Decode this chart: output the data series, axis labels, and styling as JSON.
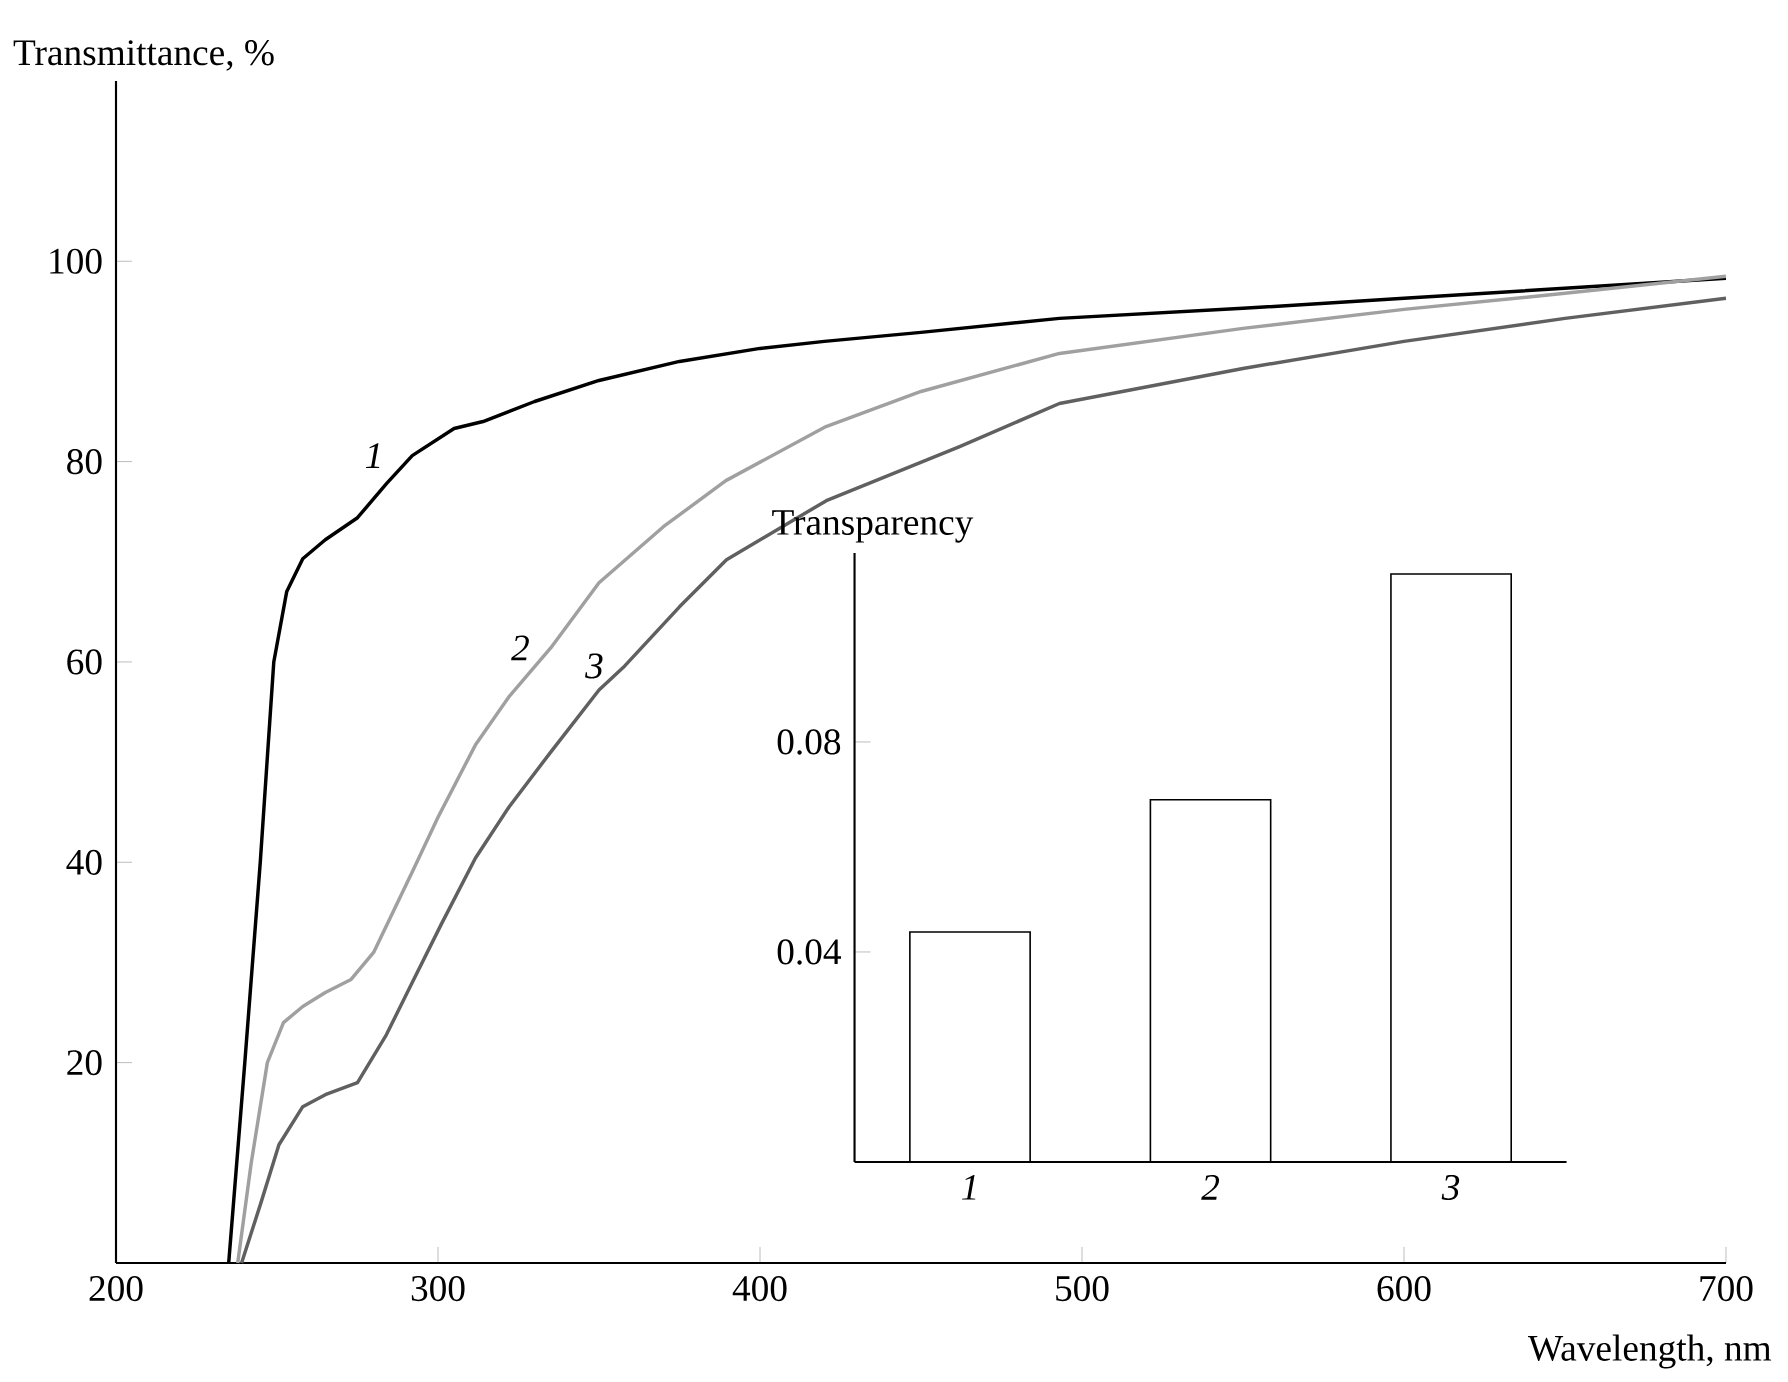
{
  "chart_data": [
    {
      "type": "line",
      "xlabel": "Wavelength, nm",
      "ylabel": "Transmittance, %",
      "xlim": [
        200,
        700
      ],
      "ylim": [
        0,
        118
      ],
      "xticks": [
        200,
        300,
        400,
        500,
        600,
        700
      ],
      "yticks": [
        20,
        40,
        60,
        80,
        100
      ],
      "series": [
        {
          "name": "1",
          "color": "#000000",
          "x": [
            235,
            240,
            244.8,
            249,
            253,
            258,
            265,
            275,
            284,
            292,
            305,
            314,
            330,
            350,
            375,
            400,
            420,
            450,
            493,
            550,
            600,
            650,
            700
          ],
          "values": [
            0,
            20,
            40,
            60,
            67,
            70.3,
            72.2,
            74.4,
            77.8,
            80.6,
            83.3,
            84,
            86,
            88.1,
            90,
            91.3,
            92,
            92.9,
            94.3,
            95.3,
            96.3,
            97.3,
            98.3
          ]
        },
        {
          "name": "2",
          "color": "#a0a0a0",
          "x": [
            237.8,
            242,
            247,
            252,
            258,
            265,
            273,
            280,
            292.4,
            300,
            311.6,
            322,
            335,
            350,
            370,
            389.4,
            420.5,
            450,
            493,
            550,
            600,
            650,
            700
          ],
          "values": [
            0,
            10,
            20,
            24,
            25.6,
            27,
            28.3,
            31,
            39.3,
            44.5,
            51.7,
            56.5,
            61.4,
            67.9,
            73.5,
            78.1,
            83.5,
            87,
            90.8,
            93.3,
            95.2,
            96.8,
            98.5
          ]
        },
        {
          "name": "3",
          "color": "#606060",
          "x": [
            239,
            245,
            250.6,
            258,
            265,
            275,
            284,
            292,
            301,
            311.6,
            322,
            335,
            350,
            358,
            375,
            389.6,
            420.6,
            462,
            493,
            550,
            600,
            650,
            700
          ],
          "values": [
            0,
            6,
            11.8,
            15.6,
            16.8,
            18,
            22.8,
            28,
            33.8,
            40.4,
            45.5,
            51,
            57.2,
            59.6,
            65.5,
            70.2,
            76.1,
            81.5,
            85.8,
            89.3,
            92,
            94.3,
            96.3
          ]
        }
      ]
    },
    {
      "type": "bar",
      "ylabel": "Transparency",
      "categories": [
        "1",
        "2",
        "3"
      ],
      "values": [
        0.0438,
        0.069,
        0.112
      ],
      "color": "#000000",
      "ylim": [
        0,
        0.116
      ],
      "yticks": [
        0.04,
        0.08
      ]
    }
  ]
}
